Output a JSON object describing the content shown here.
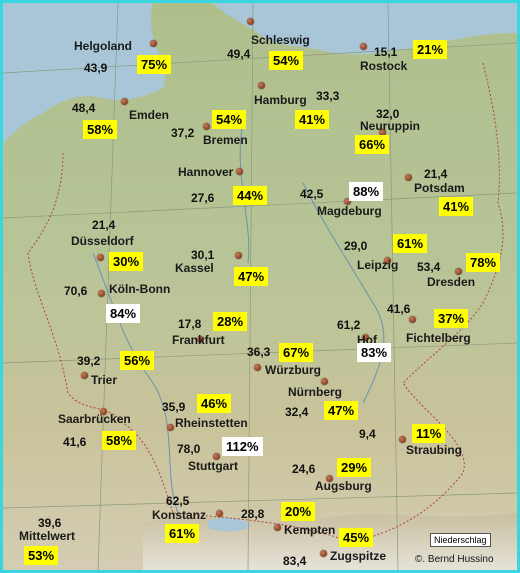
{
  "legend": {
    "label": "Niederschlag",
    "copyright": "©. Bernd Hussino"
  },
  "stations": [
    {
      "id": "helgoland",
      "name": "Helgoland",
      "value": "43,9",
      "percent": "75%",
      "highlight": "yellow"
    },
    {
      "id": "schleswig",
      "name": "Schleswig",
      "value": "49,4",
      "percent": "54%",
      "highlight": "yellow"
    },
    {
      "id": "rostock",
      "name": "Rostock",
      "value": "15,1",
      "percent": "21%",
      "highlight": "yellow"
    },
    {
      "id": "emden",
      "name": "Emden",
      "value": "48,4",
      "percent": "58%",
      "highlight": "yellow"
    },
    {
      "id": "hamburg",
      "name": "Hamburg",
      "value": "33,3",
      "percent": "41%",
      "highlight": "yellow"
    },
    {
      "id": "neuruppin",
      "name": "Neuruppin",
      "value": "32,0",
      "percent": "66%",
      "highlight": "yellow"
    },
    {
      "id": "bremen",
      "name": "Bremen",
      "value": "37,2",
      "percent": "54%",
      "highlight": "yellow"
    },
    {
      "id": "hannover",
      "name": "Hannover",
      "value": "27,6",
      "percent": "44%",
      "highlight": "yellow"
    },
    {
      "id": "magdeburg",
      "name": "Magdeburg",
      "value": "42,5",
      "percent": "88%",
      "highlight": "white"
    },
    {
      "id": "potsdam",
      "name": "Potsdam",
      "value": "21,4",
      "percent": "41%",
      "highlight": "yellow"
    },
    {
      "id": "duesseldorf",
      "name": "Düsseldorf",
      "value": "21,4",
      "percent": "30%",
      "highlight": "yellow"
    },
    {
      "id": "kassel",
      "name": "Kassel",
      "value": "30,1",
      "percent": "47%",
      "highlight": "yellow"
    },
    {
      "id": "leipzig",
      "name": "Leipzig",
      "value": "29,0",
      "percent": "61%",
      "highlight": "yellow"
    },
    {
      "id": "dresden",
      "name": "Dresden",
      "value": "53,4",
      "percent": "78%",
      "highlight": "yellow"
    },
    {
      "id": "koeln",
      "name": "Köln-Bonn",
      "value": "70,6",
      "percent": "84%",
      "highlight": "white"
    },
    {
      "id": "fichtelberg",
      "name": "Fichtelberg",
      "value": "41,6",
      "percent": "37%",
      "highlight": "yellow"
    },
    {
      "id": "frankfurt",
      "name": "Frankfurt",
      "value": "17,8",
      "percent": "28%",
      "highlight": "yellow"
    },
    {
      "id": "hof",
      "name": "Hof",
      "value": "61,2",
      "percent": "83%",
      "highlight": "white"
    },
    {
      "id": "wuerzburg",
      "name": "Würzburg",
      "value": "36,3",
      "percent": "67%",
      "highlight": "yellow"
    },
    {
      "id": "trier",
      "name": "Trier",
      "value": "39,2",
      "percent": "56%",
      "highlight": "yellow"
    },
    {
      "id": "nuernberg",
      "name": "Nürnberg",
      "value": "32,4",
      "percent": "47%",
      "highlight": "yellow"
    },
    {
      "id": "saarbruecken",
      "name": "Saarbrücken",
      "value": "41,6",
      "percent": "58%",
      "highlight": "yellow"
    },
    {
      "id": "rheinstetten",
      "name": "Rheinstetten",
      "value": "35,9",
      "percent": "46%",
      "highlight": "yellow"
    },
    {
      "id": "stuttgart",
      "name": "Stuttgart",
      "value": "78,0",
      "percent": "112%",
      "highlight": "white"
    },
    {
      "id": "straubing",
      "name": "Straubing",
      "value": "9,4",
      "percent": "11%",
      "highlight": "yellow"
    },
    {
      "id": "augsburg",
      "name": "Augsburg",
      "value": "24,6",
      "percent": "29%",
      "highlight": "yellow"
    },
    {
      "id": "konstanz",
      "name": "Konstanz",
      "value": "62,5",
      "percent": "61%",
      "highlight": "yellow"
    },
    {
      "id": "kempten",
      "name": "Kempten",
      "value": "28,8",
      "percent": "20%",
      "highlight": "yellow"
    },
    {
      "id": "zugspitze",
      "name": "Zugspitze",
      "value": "83,4",
      "percent": "45%",
      "highlight": "yellow"
    },
    {
      "id": "mittelwert",
      "name": "Mittelwert",
      "value": "39,6",
      "percent": "53%",
      "highlight": "yellow"
    }
  ]
}
